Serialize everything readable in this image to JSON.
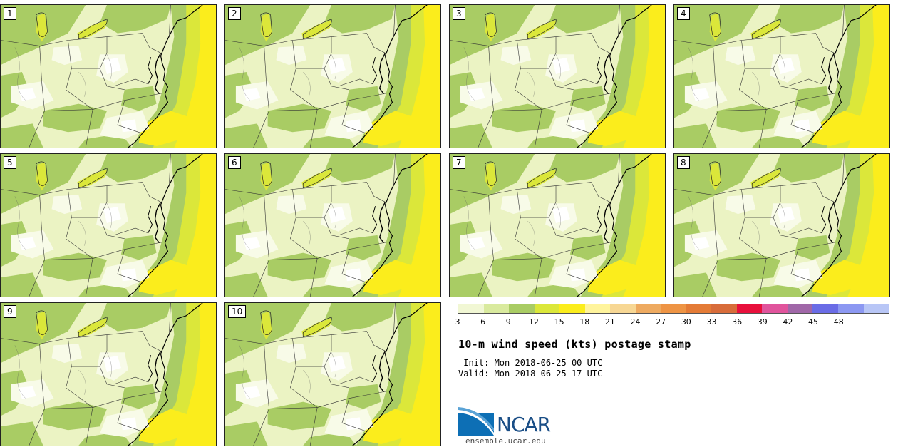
{
  "panels": [
    {
      "label": "1"
    },
    {
      "label": "2"
    },
    {
      "label": "3"
    },
    {
      "label": "4"
    },
    {
      "label": "5"
    },
    {
      "label": "6"
    },
    {
      "label": "7"
    },
    {
      "label": "8"
    },
    {
      "label": "9"
    },
    {
      "label": "10"
    }
  ],
  "colorbar": {
    "ticks": [
      "3",
      "6",
      "9",
      "12",
      "15",
      "18",
      "21",
      "24",
      "27",
      "30",
      "33",
      "36",
      "39",
      "42",
      "45",
      "48"
    ],
    "colors": [
      "#f1f7d4",
      "#d9ea9e",
      "#a9cc64",
      "#dbe73a",
      "#fbed1c",
      "#fff49c",
      "#f7d794",
      "#eeaa60",
      "#ee9444",
      "#e47b36",
      "#d86c3a",
      "#e8103c",
      "#e0549c",
      "#a067a8",
      "#6a6ce6",
      "#8c98f2",
      "#b8c6f6"
    ]
  },
  "map_colors": {
    "light": "#ebf3c3",
    "pale": "#f8fbe8",
    "green": "#a9cc64",
    "lime": "#dbe73a",
    "yellow": "#fbed1c",
    "white": "#ffffff",
    "orange": "#ee9444",
    "red": "#e8103c"
  },
  "title": "10-m wind speed (kts) postage stamp",
  "init": " Init: Mon 2018-06-25 00 UTC",
  "valid": "Valid: Mon 2018-06-25 17 UTC",
  "logo_text": "NCAR",
  "url": "ensemble.ucar.edu"
}
